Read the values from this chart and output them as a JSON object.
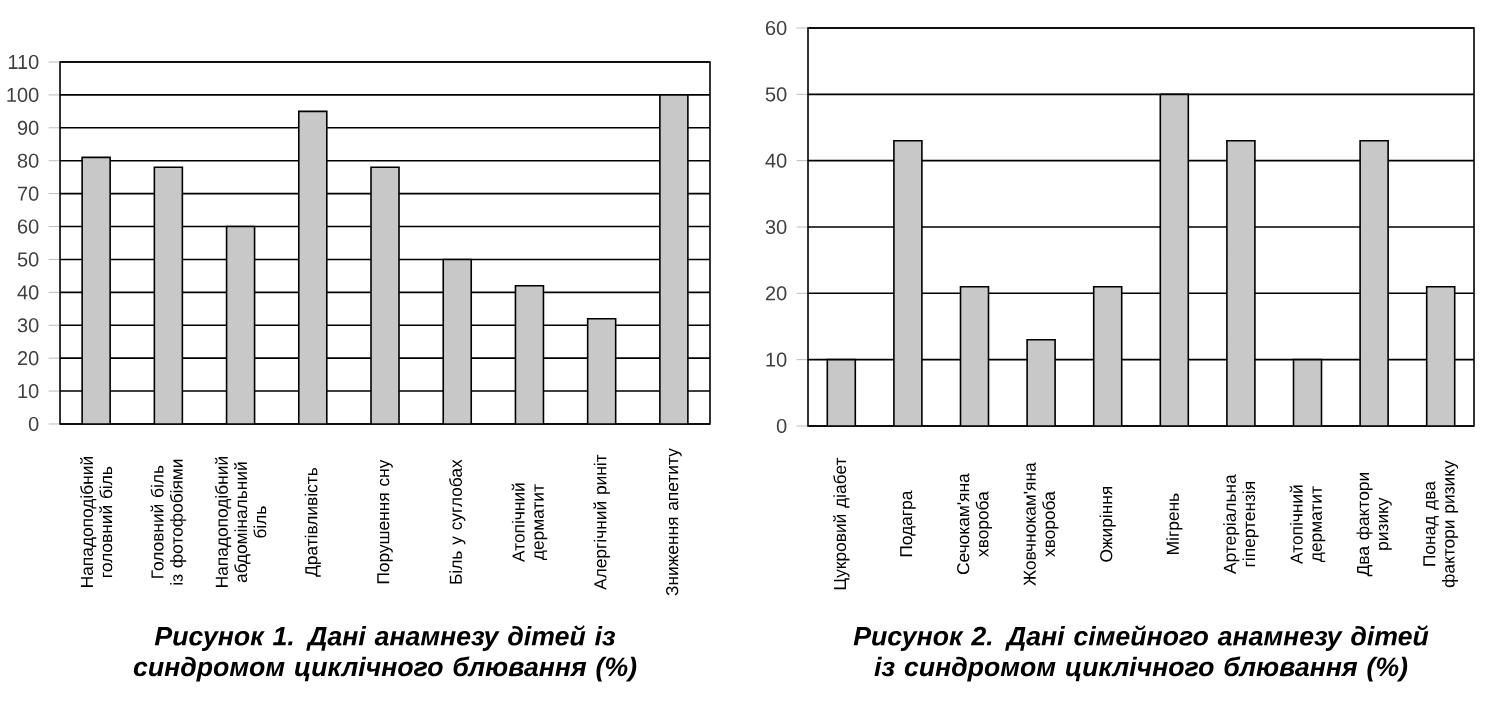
{
  "chart_data": [
    {
      "type": "bar",
      "title": "Рисунок 1. Дані анамнезу дітей із синдромом циклічного блювання (%)",
      "categories": [
        "Нападоподібний головний біль",
        "Головний біль із фотофобіями",
        "Нападоподібний абдомінальний біль",
        "Дратівливість",
        "Порушення сну",
        "Біль у суглобах",
        "Атопічний дерматит",
        "Алергічний риніт",
        "Зниження апетиту"
      ],
      "values": [
        81,
        78,
        60,
        95,
        78,
        50,
        42,
        32,
        100
      ],
      "color": "#c8c8c8",
      "ylim": [
        0,
        110
      ],
      "yticks": [
        0,
        10,
        20,
        30,
        40,
        50,
        60,
        70,
        80,
        90,
        100,
        110
      ],
      "grid": "y"
    },
    {
      "type": "bar",
      "title": "Рисунок 2. Дані сімейного анамнезу дітей із синдромом циклічного блювання (%)",
      "categories": [
        "Цукровий діабет",
        "Подагра",
        "Сечокам'яна хвороба",
        "Жовчнокам'яна хвороба",
        "Ожиріння",
        "Мігрень",
        "Артеріальна гіпертензія",
        "Атопічний дерматит",
        "Два фактори ризику",
        "Понад два фактори ризику"
      ],
      "values": [
        10,
        43,
        21,
        13,
        21,
        50,
        43,
        10,
        43,
        21
      ],
      "color": "#c8c8c8",
      "ylim": [
        0,
        60
      ],
      "yticks": [
        0,
        10,
        20,
        30,
        40,
        50,
        60
      ],
      "grid": "y"
    }
  ]
}
